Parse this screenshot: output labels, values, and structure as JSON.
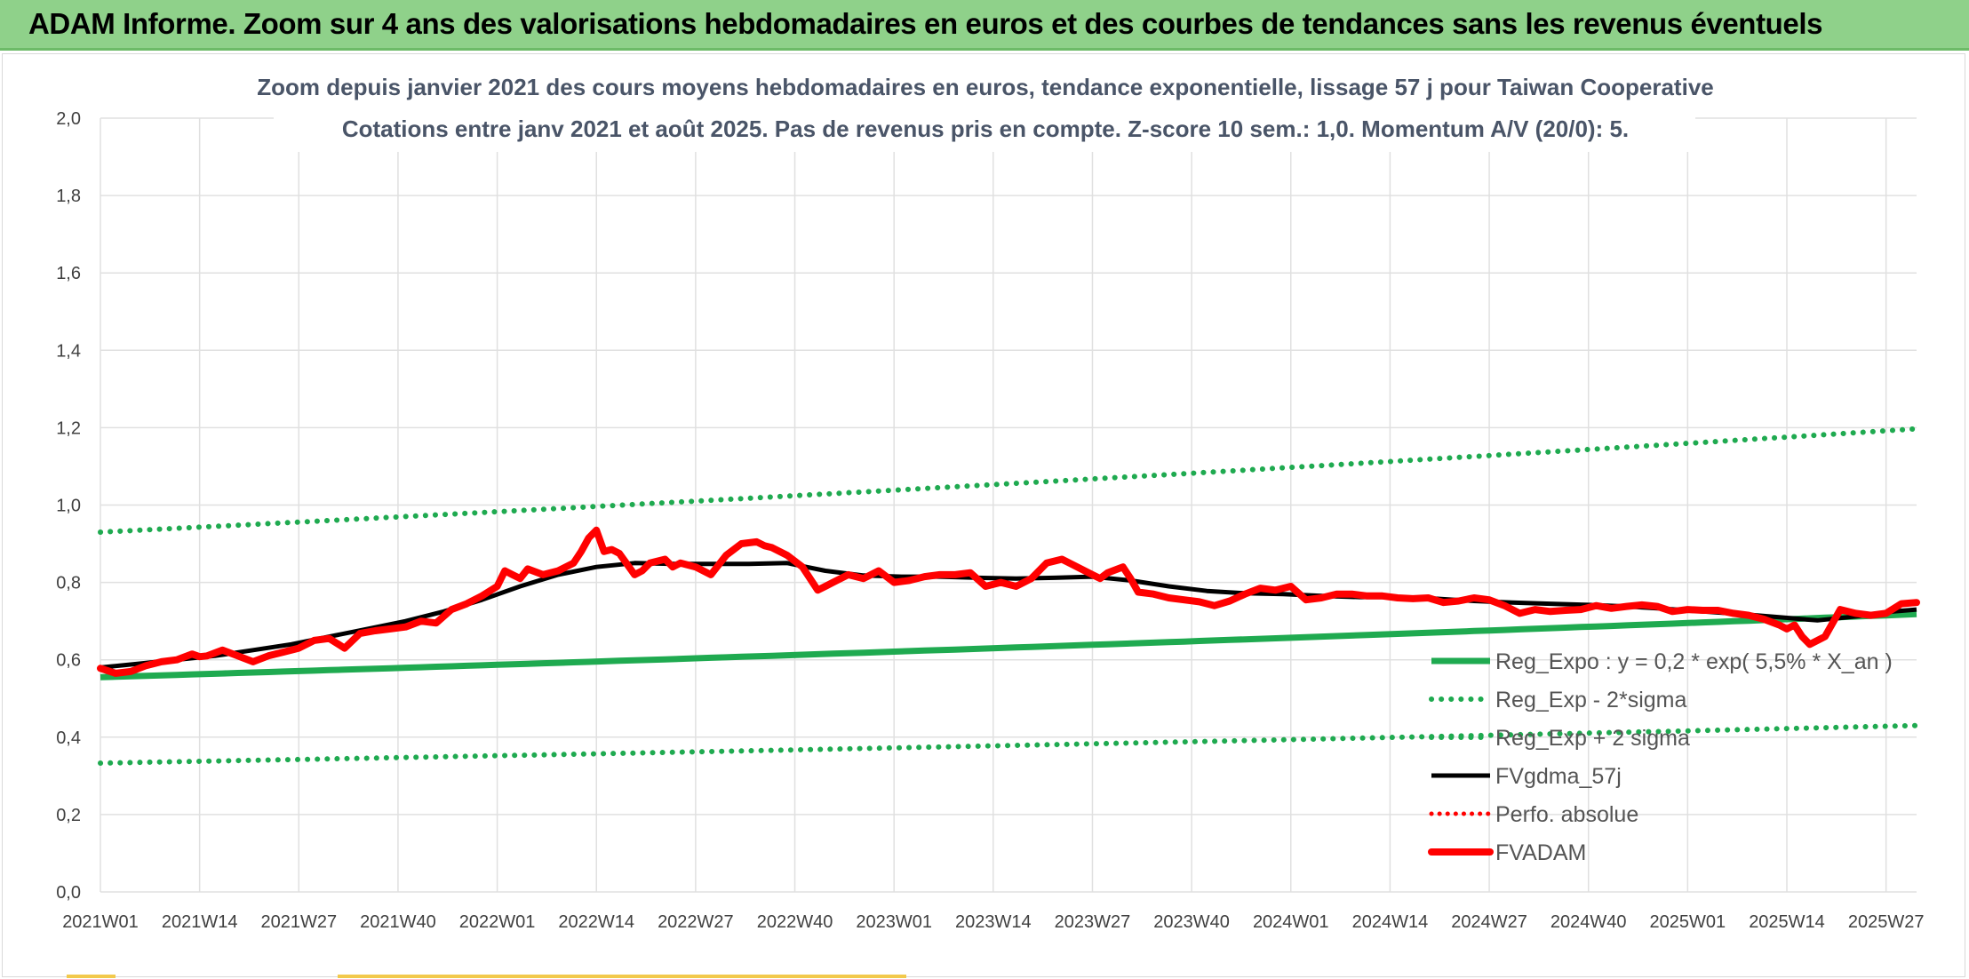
{
  "banner": {
    "title": "ADAM Informe. Zoom sur 4 ans des valorisations hebdomadaires en euros et des courbes de tendances sans les revenus éventuels"
  },
  "colors": {
    "banner_bg": "#8fd18a",
    "trend_green": "#1faa50",
    "fv_black": "#000000",
    "fvadam_red": "#ff0000",
    "grid": "#e0e0e0"
  },
  "chart_data": {
    "type": "line",
    "title_lines": [
      "Zoom depuis janvier 2021 des cours moyens hebdomadaires en euros, tendance exponentielle, lissage 57 j pour Taiwan Cooperative",
      "Cotations entre janv 2021 et août 2025. Pas de revenus pris en compte. Z-score 10 sem.: 1,0. Momentum A/V (20/0): 5."
    ],
    "x_tick_labels": [
      "2021W01",
      "2021W14",
      "2021W27",
      "2021W40",
      "2022W01",
      "2022W14",
      "2022W27",
      "2022W40",
      "2023W01",
      "2023W14",
      "2023W27",
      "2023W40",
      "2024W01",
      "2024W14",
      "2024W27",
      "2024W40",
      "2025W01",
      "2025W14",
      "2025W27"
    ],
    "x_tick_weeks": [
      0,
      13,
      26,
      39,
      52,
      65,
      78,
      91,
      104,
      117,
      130,
      143,
      156,
      169,
      182,
      195,
      208,
      221,
      234
    ],
    "x_range": [
      0,
      238
    ],
    "y_tick_labels": [
      "0,0",
      "0,2",
      "0,4",
      "0,6",
      "0,8",
      "1,0",
      "1,2",
      "1,4",
      "1,6",
      "1,8",
      "2,0"
    ],
    "ylim": [
      0,
      2
    ],
    "y_step": 0.2,
    "grid": true,
    "legend_position": "bottom-right inside plot",
    "series": [
      {
        "name": "Reg_Expo : y = 0,2 * exp( 5,5% * X_an )",
        "style": "solid-green",
        "x": [
          0,
          238
        ],
        "y": [
          0.555,
          0.718
        ],
        "curve": "exp"
      },
      {
        "name": "Reg_Exp - 2*sigma",
        "style": "dotted-green",
        "x": [
          0,
          238
        ],
        "y": [
          0.333,
          0.43
        ],
        "curve": "exp"
      },
      {
        "name": "Reg_Exp + 2 sigma",
        "style": "dotted-green",
        "x": [
          0,
          238
        ],
        "y": [
          0.93,
          1.197
        ],
        "curve": "exp"
      },
      {
        "name": "FVgdma_57j",
        "style": "solid-black",
        "x": [
          0,
          5,
          10,
          15,
          20,
          25,
          30,
          35,
          40,
          45,
          50,
          55,
          60,
          65,
          70,
          75,
          80,
          85,
          90,
          95,
          100,
          105,
          110,
          115,
          120,
          125,
          130,
          135,
          140,
          145,
          150,
          155,
          160,
          165,
          170,
          175,
          180,
          185,
          190,
          195,
          200,
          205,
          210,
          215,
          220,
          225,
          230,
          235,
          238
        ],
        "y": [
          0.58,
          0.59,
          0.6,
          0.61,
          0.625,
          0.64,
          0.66,
          0.68,
          0.7,
          0.725,
          0.755,
          0.79,
          0.82,
          0.84,
          0.85,
          0.848,
          0.848,
          0.848,
          0.85,
          0.83,
          0.818,
          0.815,
          0.815,
          0.812,
          0.81,
          0.812,
          0.815,
          0.805,
          0.79,
          0.778,
          0.772,
          0.77,
          0.765,
          0.762,
          0.762,
          0.758,
          0.752,
          0.748,
          0.745,
          0.742,
          0.738,
          0.732,
          0.725,
          0.718,
          0.71,
          0.702,
          0.712,
          0.725,
          0.73
        ]
      },
      {
        "name": "Perfo. absolue",
        "style": "dotted-red",
        "x": [],
        "y": []
      },
      {
        "name": "FVADAM",
        "style": "thick-red",
        "x": [
          0,
          2,
          4,
          6,
          8,
          10,
          12,
          13,
          14,
          16,
          18,
          20,
          22,
          24,
          26,
          28,
          30,
          32,
          34,
          36,
          38,
          40,
          42,
          44,
          46,
          48,
          50,
          52,
          53,
          54,
          55,
          56,
          58,
          60,
          62,
          63,
          64,
          65,
          66,
          67,
          68,
          70,
          71,
          72,
          74,
          75,
          76,
          78,
          80,
          82,
          83,
          84,
          86,
          87,
          88,
          90,
          92,
          94,
          95,
          96,
          98,
          100,
          102,
          104,
          106,
          108,
          110,
          112,
          114,
          116,
          118,
          120,
          122,
          124,
          126,
          127,
          128,
          130,
          131,
          132,
          134,
          135,
          136,
          138,
          140,
          142,
          144,
          146,
          148,
          150,
          152,
          154,
          156,
          158,
          160,
          162,
          164,
          166,
          168,
          170,
          172,
          174,
          176,
          178,
          180,
          182,
          184,
          186,
          188,
          190,
          192,
          194,
          196,
          198,
          200,
          202,
          204,
          206,
          208,
          210,
          212,
          214,
          216,
          218,
          220,
          221,
          222,
          223,
          224,
          225,
          226,
          228,
          230,
          232,
          234,
          236,
          238
        ],
        "y": [
          0.578,
          0.565,
          0.57,
          0.585,
          0.595,
          0.6,
          0.615,
          0.608,
          0.61,
          0.625,
          0.61,
          0.595,
          0.61,
          0.62,
          0.63,
          0.65,
          0.655,
          0.63,
          0.668,
          0.675,
          0.68,
          0.685,
          0.7,
          0.695,
          0.73,
          0.745,
          0.765,
          0.79,
          0.83,
          0.82,
          0.81,
          0.835,
          0.82,
          0.83,
          0.85,
          0.88,
          0.915,
          0.935,
          0.88,
          0.885,
          0.875,
          0.82,
          0.83,
          0.85,
          0.86,
          0.84,
          0.85,
          0.84,
          0.82,
          0.87,
          0.885,
          0.9,
          0.905,
          0.895,
          0.89,
          0.87,
          0.84,
          0.78,
          0.79,
          0.8,
          0.82,
          0.81,
          0.83,
          0.8,
          0.805,
          0.815,
          0.82,
          0.82,
          0.825,
          0.79,
          0.8,
          0.79,
          0.81,
          0.85,
          0.86,
          0.85,
          0.84,
          0.82,
          0.81,
          0.825,
          0.84,
          0.81,
          0.775,
          0.77,
          0.76,
          0.755,
          0.75,
          0.74,
          0.752,
          0.77,
          0.785,
          0.78,
          0.79,
          0.755,
          0.76,
          0.77,
          0.77,
          0.765,
          0.765,
          0.76,
          0.758,
          0.76,
          0.748,
          0.752,
          0.76,
          0.755,
          0.74,
          0.72,
          0.73,
          0.725,
          0.728,
          0.73,
          0.74,
          0.733,
          0.738,
          0.742,
          0.738,
          0.725,
          0.73,
          0.728,
          0.728,
          0.72,
          0.715,
          0.705,
          0.69,
          0.68,
          0.69,
          0.66,
          0.64,
          0.65,
          0.66,
          0.73,
          0.72,
          0.715,
          0.72,
          0.745,
          0.748
        ]
      }
    ]
  }
}
